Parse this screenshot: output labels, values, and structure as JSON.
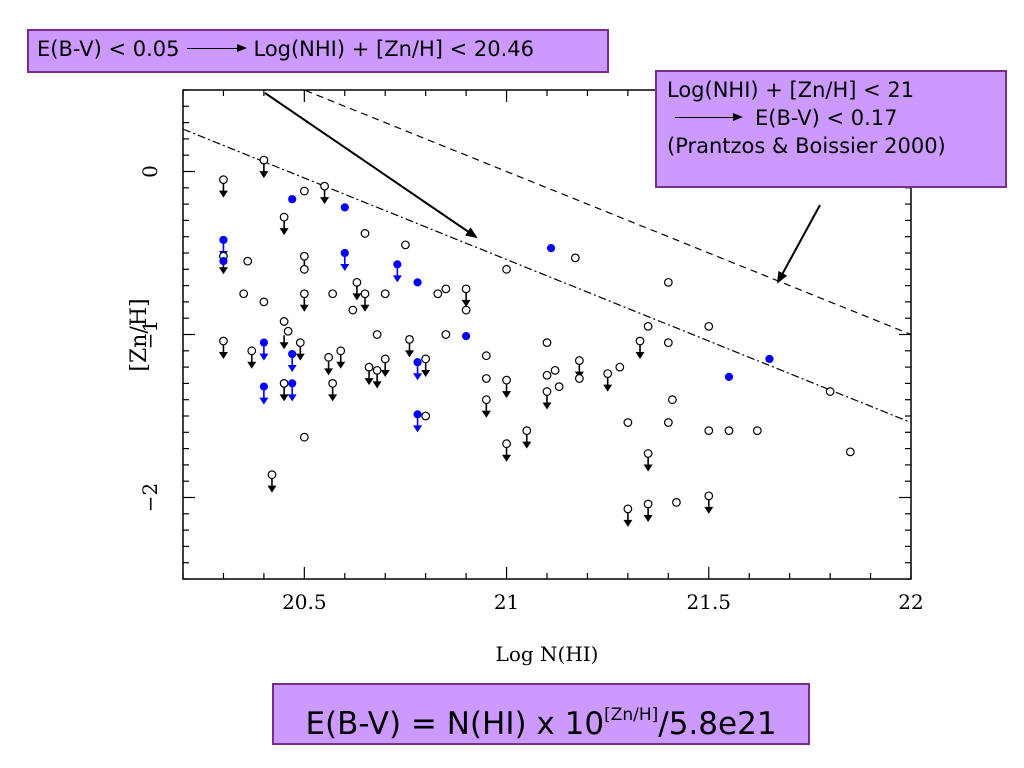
{
  "notes": {
    "top": {
      "left": "E(B-V) < 0.05",
      "right": "Log(NHI) + [Zn/H] < 20.46"
    },
    "right": {
      "line1": "Log(NHI) + [Zn/H] < 21",
      "line2": "E(B-V) < 0.17",
      "line3": "(Prantzos & Boissier 2000)"
    },
    "bottom": {
      "pre": "E(B-V) = N(HI) x 10",
      "sup": "[Zn/H]",
      "post": "/5.8e21"
    }
  },
  "chart_data": {
    "type": "scatter",
    "xlabel": "Log N(HI)",
    "ylabel": "[Zn/H]",
    "xlim": [
      20.2,
      22.0
    ],
    "ylim": [
      -2.5,
      0.5
    ],
    "xticks": [
      20.5,
      21,
      21.5,
      22
    ],
    "xtick_labels": [
      "20.5",
      "21",
      "21.5",
      "22"
    ],
    "yticks": [
      0,
      -1,
      -2
    ],
    "ytick_labels": [
      "0",
      "−1",
      "−2"
    ],
    "colors": {
      "open": "#000000",
      "filled": "#0000ff"
    },
    "lines": [
      {
        "style": "dashed",
        "x": [
          20.2,
          22.0
        ],
        "y": [
          0.8,
          -1.0
        ]
      },
      {
        "style": "dashdot",
        "x": [
          20.2,
          22.0
        ],
        "y": [
          0.26,
          -1.54
        ]
      }
    ],
    "series": [
      {
        "marker": "open-circle",
        "points": [
          [
            20.3,
            -0.05
          ],
          [
            20.4,
            0.07
          ],
          [
            20.5,
            -0.12
          ],
          [
            20.55,
            -0.09
          ],
          [
            20.45,
            -0.28
          ],
          [
            20.3,
            -0.52
          ],
          [
            20.36,
            -0.55
          ],
          [
            20.45,
            -0.92
          ],
          [
            20.5,
            -0.52
          ],
          [
            20.3,
            -1.04
          ],
          [
            20.37,
            -1.1
          ],
          [
            20.46,
            -0.98
          ],
          [
            20.49,
            -1.05
          ],
          [
            20.56,
            -1.14
          ],
          [
            20.59,
            -1.1
          ],
          [
            20.57,
            -1.3
          ],
          [
            20.45,
            -1.3
          ],
          [
            20.35,
            -0.75
          ],
          [
            20.4,
            -0.8
          ],
          [
            20.5,
            -0.75
          ],
          [
            20.57,
            -0.75
          ],
          [
            20.62,
            -0.85
          ],
          [
            20.65,
            -0.38
          ],
          [
            20.65,
            -0.75
          ],
          [
            20.63,
            -0.68
          ],
          [
            20.68,
            -1.0
          ],
          [
            20.66,
            -1.2
          ],
          [
            20.68,
            -1.22
          ],
          [
            20.7,
            -1.15
          ],
          [
            20.7,
            -0.75
          ],
          [
            20.75,
            -0.45
          ],
          [
            20.76,
            -1.03
          ],
          [
            20.8,
            -1.15
          ],
          [
            20.8,
            -1.5
          ],
          [
            20.83,
            -0.75
          ],
          [
            20.85,
            -0.72
          ],
          [
            20.85,
            -1.0
          ],
          [
            20.9,
            -0.72
          ],
          [
            20.9,
            -0.85
          ],
          [
            20.95,
            -1.13
          ],
          [
            20.95,
            -1.27
          ],
          [
            20.95,
            -1.4
          ],
          [
            21.0,
            -0.6
          ],
          [
            21.0,
            -1.28
          ],
          [
            21.0,
            -1.67
          ],
          [
            21.05,
            -1.59
          ],
          [
            21.1,
            -1.05
          ],
          [
            21.1,
            -1.25
          ],
          [
            21.12,
            -1.22
          ],
          [
            21.1,
            -1.35
          ],
          [
            21.13,
            -1.32
          ],
          [
            21.17,
            -0.53
          ],
          [
            21.18,
            -1.16
          ],
          [
            21.18,
            -1.27
          ],
          [
            21.25,
            -1.24
          ],
          [
            21.28,
            -1.2
          ],
          [
            21.3,
            -1.54
          ],
          [
            21.3,
            -2.07
          ],
          [
            21.33,
            -1.04
          ],
          [
            21.35,
            -0.95
          ],
          [
            21.35,
            -1.73
          ],
          [
            21.35,
            -2.04
          ],
          [
            21.4,
            -1.05
          ],
          [
            21.4,
            -0.68
          ],
          [
            21.41,
            -1.4
          ],
          [
            21.4,
            -1.54
          ],
          [
            21.42,
            -2.03
          ],
          [
            21.5,
            -0.95
          ],
          [
            21.5,
            -1.59
          ],
          [
            21.5,
            -1.99
          ],
          [
            21.55,
            -1.59
          ],
          [
            21.62,
            -1.59
          ],
          [
            21.8,
            -1.35
          ],
          [
            21.85,
            -1.72
          ],
          [
            20.42,
            -1.86
          ],
          [
            20.5,
            -1.63
          ],
          [
            20.5,
            -0.6
          ]
        ]
      },
      {
        "marker": "filled-circle",
        "points": [
          [
            20.3,
            -0.42
          ],
          [
            20.3,
            -0.55
          ],
          [
            20.4,
            -1.05
          ],
          [
            20.4,
            -1.32
          ],
          [
            20.47,
            -0.17
          ],
          [
            20.47,
            -1.12
          ],
          [
            20.47,
            -1.3
          ],
          [
            20.6,
            -0.22
          ],
          [
            20.6,
            -0.5
          ],
          [
            20.73,
            -0.57
          ],
          [
            20.78,
            -0.68
          ],
          [
            20.78,
            -1.17
          ],
          [
            20.78,
            -1.49
          ],
          [
            20.9,
            -1.01
          ],
          [
            21.11,
            -0.47
          ],
          [
            21.55,
            -1.26
          ],
          [
            21.65,
            -1.15
          ]
        ]
      }
    ],
    "upper_limit_arrows": {
      "black": [
        [
          20.3,
          -0.05
        ],
        [
          20.3,
          -0.52
        ],
        [
          20.3,
          -1.04
        ],
        [
          20.37,
          -1.1
        ],
        [
          20.4,
          0.07
        ],
        [
          20.45,
          -0.28
        ],
        [
          20.45,
          -0.98
        ],
        [
          20.45,
          -1.3
        ],
        [
          20.49,
          -1.05
        ],
        [
          20.5,
          -0.52
        ],
        [
          20.5,
          -0.75
        ],
        [
          20.55,
          -0.09
        ],
        [
          20.56,
          -1.14
        ],
        [
          20.57,
          -1.3
        ],
        [
          20.59,
          -1.1
        ],
        [
          20.63,
          -0.68
        ],
        [
          20.65,
          -0.75
        ],
        [
          20.66,
          -1.2
        ],
        [
          20.68,
          -1.22
        ],
        [
          20.7,
          -1.15
        ],
        [
          20.76,
          -1.03
        ],
        [
          20.8,
          -1.15
        ],
        [
          20.9,
          -0.72
        ],
        [
          20.95,
          -1.4
        ],
        [
          21.0,
          -1.28
        ],
        [
          21.0,
          -1.67
        ],
        [
          21.05,
          -1.59
        ],
        [
          21.1,
          -1.35
        ],
        [
          21.18,
          -1.16
        ],
        [
          21.25,
          -1.24
        ],
        [
          21.3,
          -2.07
        ],
        [
          21.33,
          -1.04
        ],
        [
          21.35,
          -1.73
        ],
        [
          21.35,
          -2.04
        ],
        [
          21.5,
          -1.99
        ],
        [
          20.42,
          -1.86
        ]
      ],
      "blue": [
        [
          20.3,
          -0.42
        ],
        [
          20.4,
          -1.05
        ],
        [
          20.4,
          -1.32
        ],
        [
          20.47,
          -1.12
        ],
        [
          20.47,
          -1.3
        ],
        [
          20.6,
          -0.5
        ],
        [
          20.73,
          -0.57
        ],
        [
          20.78,
          -1.17
        ],
        [
          20.78,
          -1.49
        ]
      ]
    }
  }
}
